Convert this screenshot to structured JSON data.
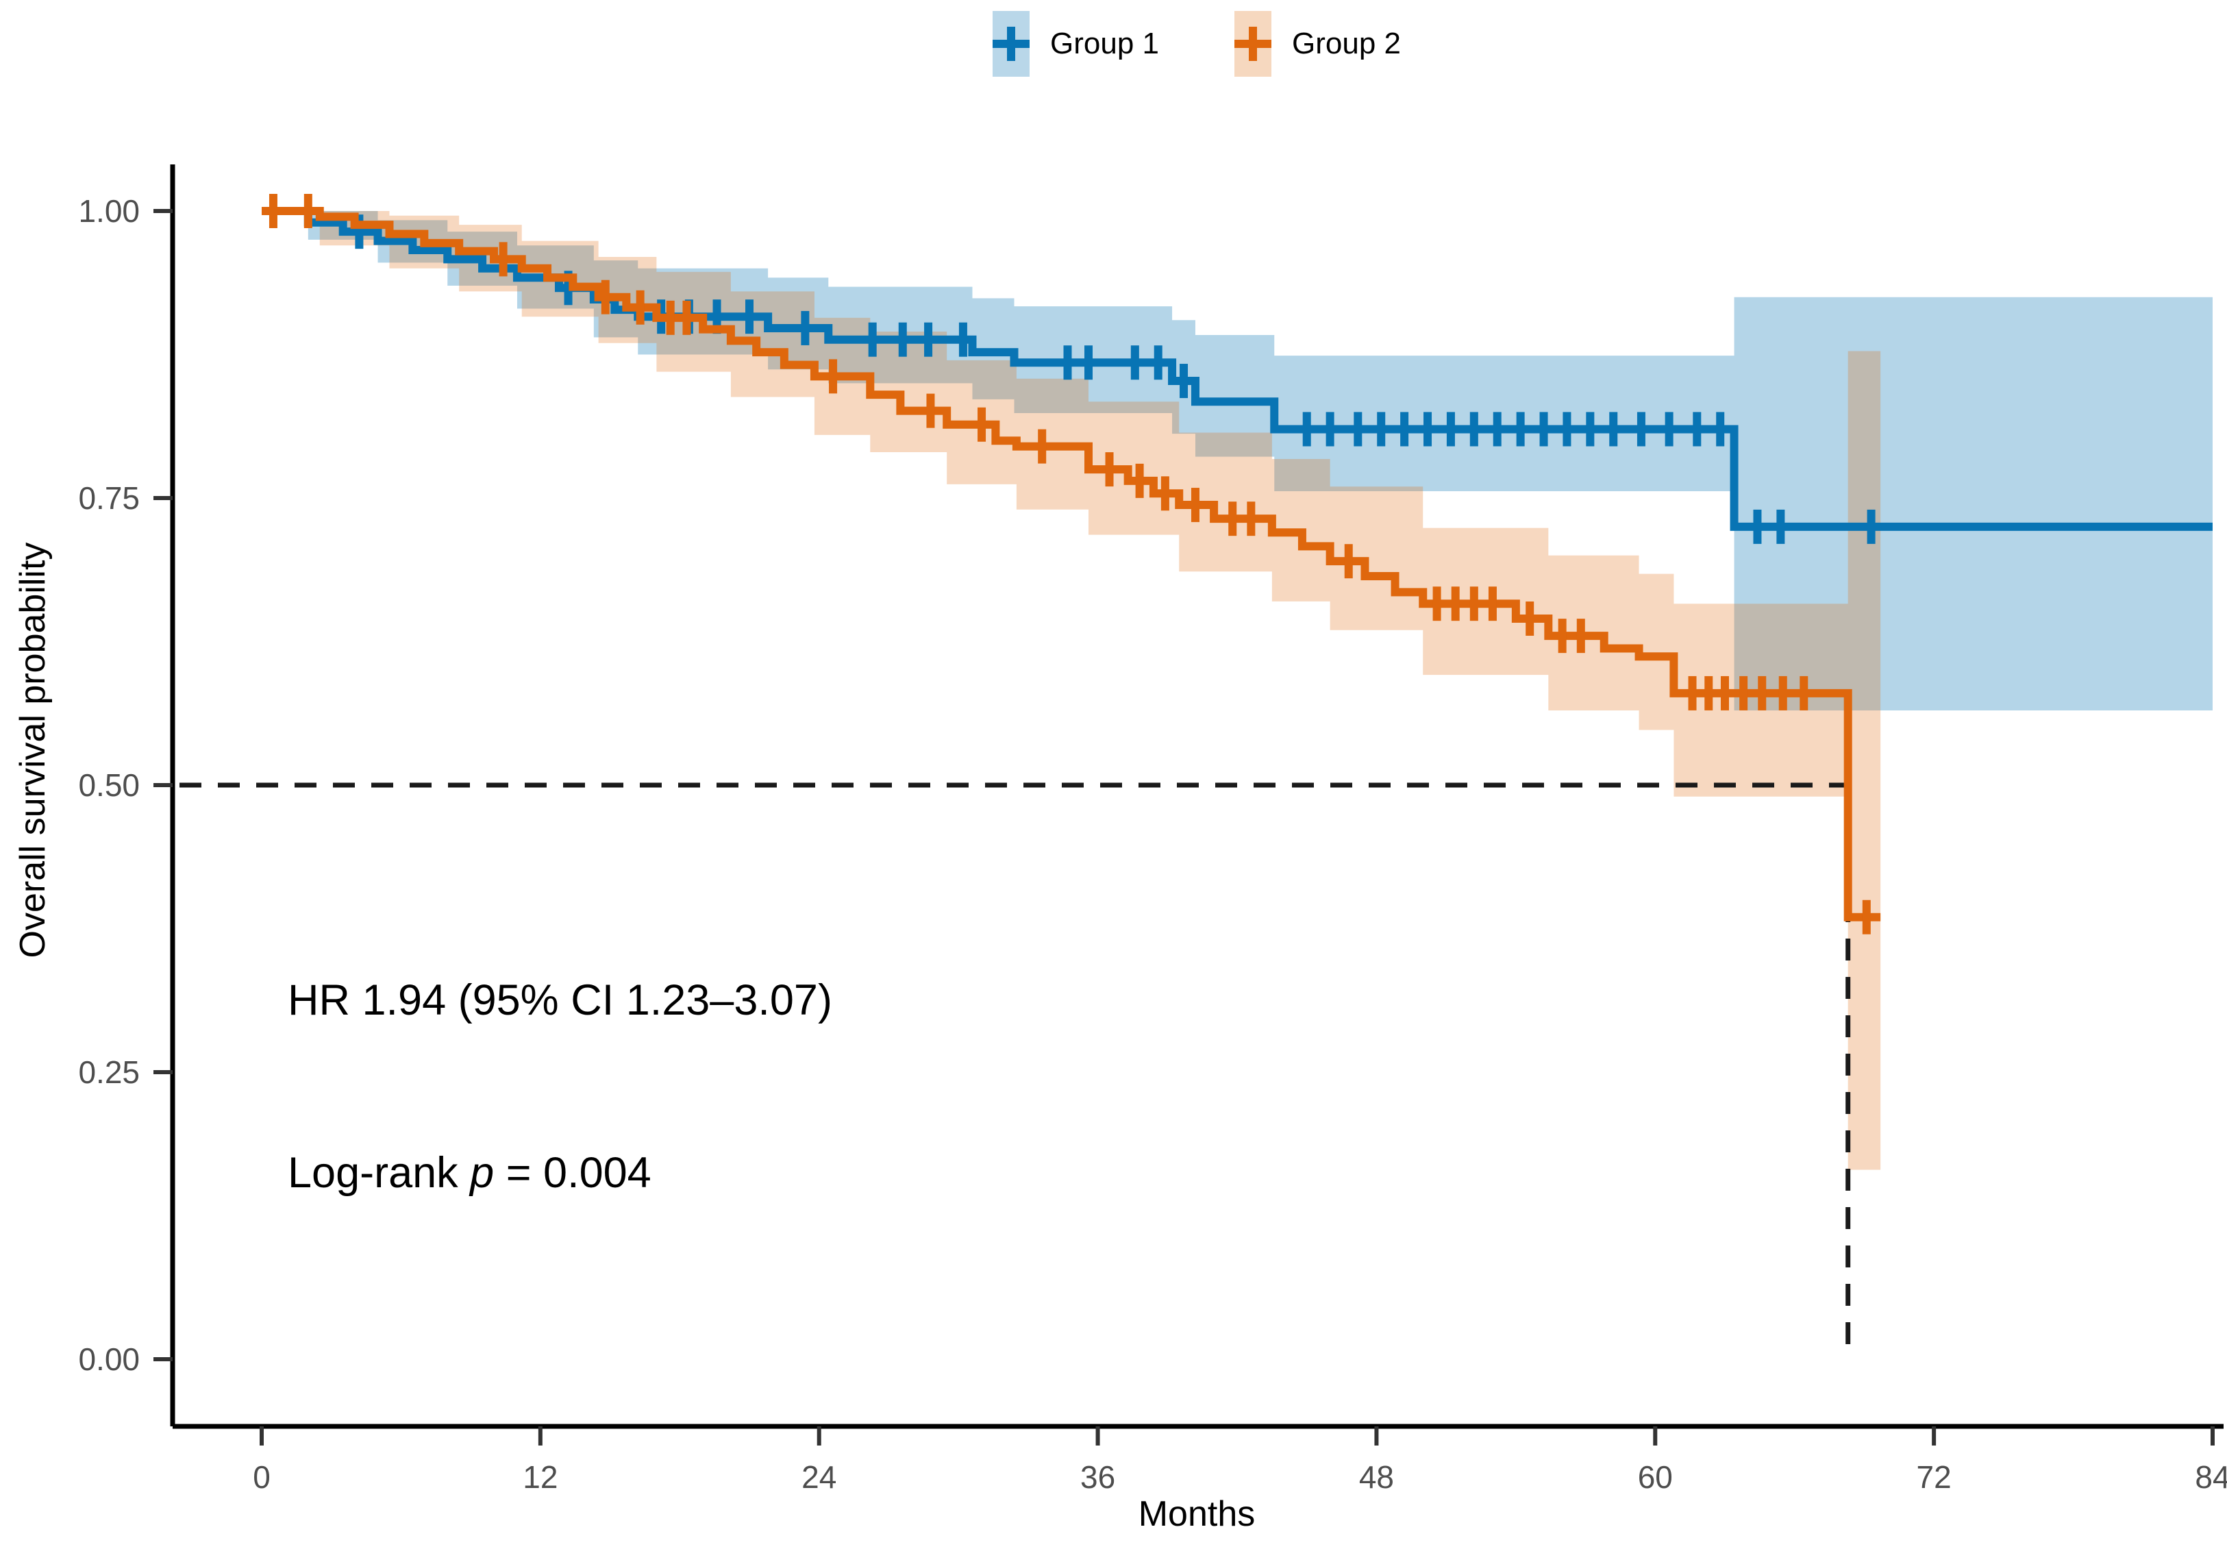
{
  "page": {
    "background": "#ffffff"
  },
  "chart_data": {
    "type": "line",
    "subtype": "kaplan-meier-step-with-ci",
    "title": "",
    "xlabel": "Months",
    "ylabel": "Overall survival probability",
    "xlim": [
      0,
      84
    ],
    "ylim": [
      0.0,
      1.0
    ],
    "grid": false,
    "x_ticks": [
      0,
      12,
      24,
      36,
      48,
      60,
      72,
      84
    ],
    "y_ticks": [
      {
        "value": 1.0,
        "label": "1.00"
      },
      {
        "value": 0.75,
        "label": "0.75"
      },
      {
        "value": 0.5,
        "label": "0.50"
      },
      {
        "value": 0.25,
        "label": "0.25"
      },
      {
        "value": 0.0,
        "label": "0.00"
      }
    ],
    "tick_label_color": "#4d4d4d",
    "axis_line_color": "#000000",
    "legend": {
      "position": "top-center",
      "items": [
        {
          "label": "Group 1",
          "line_color": "#0874b4",
          "band_color": "#b9d7e9"
        },
        {
          "label": "Group 2",
          "line_color": "#df670d",
          "band_color": "#f6d8bf"
        }
      ]
    },
    "annotations": {
      "hr_text": "HR 1.94 (95% CI 1.23–3.07)",
      "logrank_prefix": "Log-rank",
      "logrank_symbol": "p",
      "logrank_value": "= 0.004"
    },
    "median_guides": {
      "style": "dashed",
      "color": "#1a1a1a",
      "survival_level": 0.5,
      "month_at_median": 68.3
    },
    "series": [
      {
        "name": "Group 1",
        "line_color": "#0874b4",
        "band_opacity": 0.3,
        "end_month": 84,
        "steps": [
          [
            0,
            1.0
          ],
          [
            2,
            0.99
          ],
          [
            3.5,
            0.982
          ],
          [
            5,
            0.974
          ],
          [
            6.5,
            0.966
          ],
          [
            8,
            0.958
          ],
          [
            9.5,
            0.95
          ],
          [
            11,
            0.942
          ],
          [
            12.8,
            0.933
          ],
          [
            14.3,
            0.923
          ],
          [
            15.2,
            0.914
          ],
          [
            16.2,
            0.908
          ],
          [
            21.8,
            0.898
          ],
          [
            24.4,
            0.888
          ],
          [
            30.6,
            0.877
          ],
          [
            32.4,
            0.868
          ],
          [
            39.2,
            0.852
          ],
          [
            40.2,
            0.834
          ],
          [
            43.6,
            0.81
          ],
          [
            63.4,
            0.725
          ]
        ],
        "censor_months": [
          4.2,
          13.2,
          17.2,
          18.4,
          19.6,
          21,
          23.4,
          26.3,
          27.6,
          28.7,
          30.2,
          34.7,
          35.6,
          37.6,
          38.6,
          39.7,
          45,
          46,
          47.2,
          48.2,
          49.2,
          50.2,
          51.2,
          52.2,
          53.2,
          54.2,
          55.2,
          56.2,
          57.2,
          58.2,
          59.4,
          60.6,
          61.8,
          62.8,
          64.4,
          65.4,
          69.3
        ],
        "ci_steps": [
          [
            0,
            1,
            1
          ],
          [
            2,
            0.975,
            1
          ],
          [
            5,
            0.955,
            0.992
          ],
          [
            8,
            0.935,
            0.982
          ],
          [
            11,
            0.915,
            0.97
          ],
          [
            14.3,
            0.89,
            0.957
          ],
          [
            16.2,
            0.875,
            0.95
          ],
          [
            21.8,
            0.862,
            0.942
          ],
          [
            24.4,
            0.85,
            0.934
          ],
          [
            30.6,
            0.836,
            0.924
          ],
          [
            32.4,
            0.824,
            0.917
          ],
          [
            39.2,
            0.806,
            0.905
          ],
          [
            40.2,
            0.786,
            0.892
          ],
          [
            43.6,
            0.756,
            0.874
          ],
          [
            63.4,
            0.565,
            0.925
          ]
        ]
      },
      {
        "name": "Group 2",
        "line_color": "#df670d",
        "band_opacity": 0.26,
        "end_month": 69.7,
        "steps": [
          [
            0,
            1.0
          ],
          [
            2.5,
            0.995
          ],
          [
            4,
            0.988
          ],
          [
            5.5,
            0.98
          ],
          [
            7,
            0.972
          ],
          [
            8.5,
            0.965
          ],
          [
            10,
            0.958
          ],
          [
            11.2,
            0.95
          ],
          [
            12.3,
            0.942
          ],
          [
            13.4,
            0.934
          ],
          [
            14.5,
            0.925
          ],
          [
            15.7,
            0.916
          ],
          [
            17,
            0.907
          ],
          [
            19,
            0.897
          ],
          [
            20.2,
            0.887
          ],
          [
            21.3,
            0.877
          ],
          [
            22.5,
            0.866
          ],
          [
            23.8,
            0.856
          ],
          [
            26.2,
            0.84
          ],
          [
            27.5,
            0.826
          ],
          [
            29.5,
            0.814
          ],
          [
            31.6,
            0.8
          ],
          [
            32.5,
            0.795
          ],
          [
            35.6,
            0.775
          ],
          [
            37.3,
            0.765
          ],
          [
            38.4,
            0.754
          ],
          [
            39.5,
            0.744
          ],
          [
            41,
            0.732
          ],
          [
            43.5,
            0.72
          ],
          [
            44.8,
            0.708
          ],
          [
            46,
            0.695
          ],
          [
            47.5,
            0.682
          ],
          [
            48.8,
            0.668
          ],
          [
            50,
            0.658
          ],
          [
            54,
            0.645
          ],
          [
            55.4,
            0.63
          ],
          [
            57.8,
            0.619
          ],
          [
            59.3,
            0.612
          ],
          [
            60.8,
            0.58
          ],
          [
            68.3,
            0.385
          ]
        ],
        "censor_months": [
          0.5,
          2.0,
          10.4,
          14.8,
          16.3,
          17.6,
          18.3,
          24.6,
          28.8,
          31.0,
          33.6,
          36.5,
          37.8,
          38.9,
          40.2,
          41.8,
          42.6,
          46.8,
          50.6,
          51.4,
          52.2,
          53,
          54.6,
          56,
          56.8,
          61.6,
          62.3,
          63,
          63.8,
          64.6,
          65.5,
          66.4,
          69.1
        ],
        "ci_steps": [
          [
            0,
            1,
            1
          ],
          [
            2.5,
            0.97,
            1
          ],
          [
            5.5,
            0.95,
            0.996
          ],
          [
            8.5,
            0.93,
            0.988
          ],
          [
            11.2,
            0.908,
            0.974
          ],
          [
            14.5,
            0.885,
            0.96
          ],
          [
            17,
            0.86,
            0.947
          ],
          [
            20.2,
            0.838,
            0.93
          ],
          [
            23.8,
            0.805,
            0.907
          ],
          [
            26.2,
            0.79,
            0.895
          ],
          [
            29.5,
            0.762,
            0.87
          ],
          [
            32.5,
            0.74,
            0.854
          ],
          [
            35.6,
            0.718,
            0.834
          ],
          [
            39.5,
            0.686,
            0.807
          ],
          [
            43.5,
            0.66,
            0.784
          ],
          [
            46,
            0.635,
            0.76
          ],
          [
            50,
            0.596,
            0.724
          ],
          [
            55.4,
            0.565,
            0.7
          ],
          [
            59.3,
            0.548,
            0.684
          ],
          [
            60.8,
            0.49,
            0.658
          ],
          [
            68.3,
            0.165,
            0.878
          ]
        ]
      }
    ]
  }
}
